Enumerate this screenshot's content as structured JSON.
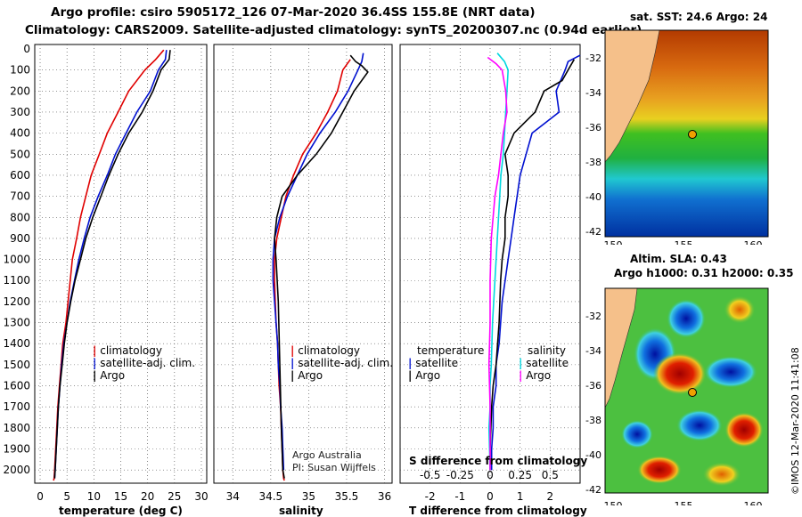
{
  "header": {
    "line1": "Argo profile: csiro 5905172_126 07-Mar-2020 36.4SS 155.8E (NRT data)",
    "line2": "Climatology: CARS2009. Satellite-adjusted climatology: synTS_20200307.nc (0.94d earlier)"
  },
  "colors": {
    "climatology": "#e00000",
    "satellite": "#0010d0",
    "argo": "#000000",
    "sat_salinity": "#00d8e0",
    "argo_salinity": "#ff00ff"
  },
  "chart_data": [
    {
      "type": "line",
      "id": "temperature",
      "xlabel": "temperature (deg C)",
      "xlim": [
        -1,
        31
      ],
      "ylim": [
        2050,
        0
      ],
      "xticks": [
        "0",
        "5",
        "10",
        "15",
        "20",
        "25",
        "30"
      ],
      "xtick_values": [
        0,
        5,
        10,
        15,
        20,
        25,
        30
      ],
      "ylabel_ticks": [
        "0",
        "100",
        "200",
        "300",
        "400",
        "500",
        "600",
        "700",
        "800",
        "900",
        "1000",
        "1100",
        "1200",
        "1300",
        "1400",
        "1500",
        "1600",
        "1700",
        "1800",
        "1900",
        "2000"
      ],
      "series": [
        {
          "name": "climatology",
          "color": "#e00000",
          "x": [
            23,
            21.5,
            19.5,
            16.5,
            14.5,
            12.5,
            11,
            9.5,
            8.5,
            7.5,
            6.8,
            6,
            5.6,
            5.2,
            4.8,
            4.2,
            3.9,
            3.6,
            3.3,
            3.1,
            2.9,
            2.7,
            2.6,
            2.5
          ],
          "y": [
            5,
            50,
            100,
            200,
            300,
            400,
            500,
            600,
            700,
            800,
            900,
            1000,
            1100,
            1200,
            1300,
            1400,
            1500,
            1600,
            1700,
            1800,
            1900,
            2000,
            2040,
            2050
          ]
        },
        {
          "name": "satellite-adj. clim.",
          "color": "#0010d0",
          "x": [
            23.5,
            23.3,
            22,
            20.5,
            18,
            16,
            14,
            12.5,
            10.8,
            9.3,
            8.2,
            7.2,
            6.4,
            5.6,
            5,
            4.4,
            4,
            3.7,
            3.4,
            3.2,
            3,
            2.8,
            2.7
          ],
          "y": [
            5,
            50,
            100,
            200,
            300,
            400,
            500,
            600,
            700,
            800,
            900,
            1000,
            1100,
            1200,
            1300,
            1400,
            1500,
            1600,
            1700,
            1800,
            1900,
            2000,
            2040
          ]
        },
        {
          "name": "Argo",
          "color": "#000000",
          "x": [
            24.2,
            24,
            22.5,
            21,
            19,
            16.5,
            14.5,
            12.8,
            11.3,
            9.8,
            8.5,
            7.5,
            6.5,
            5.7,
            5,
            4.5,
            4.1,
            3.7,
            3.4,
            3.2,
            3,
            2.8,
            2.7
          ],
          "y": [
            5,
            50,
            100,
            200,
            300,
            400,
            500,
            600,
            700,
            800,
            900,
            1000,
            1100,
            1200,
            1300,
            1400,
            1500,
            1600,
            1700,
            1800,
            1900,
            2000,
            2040
          ]
        }
      ],
      "legend": [
        "climatology",
        "satellite-adj. clim.",
        "Argo"
      ]
    },
    {
      "type": "line",
      "id": "salinity",
      "xlabel": "salinity",
      "xlim": [
        33.75,
        36.1
      ],
      "ylim": [
        2050,
        0
      ],
      "xticks": [
        "34",
        "34.5",
        "35",
        "35.5",
        "36"
      ],
      "xtick_values": [
        34,
        34.5,
        35,
        35.5,
        36
      ],
      "series": [
        {
          "name": "climatology",
          "color": "#e00000",
          "x": [
            35.55,
            35.45,
            35.38,
            35.25,
            35.1,
            34.92,
            34.8,
            34.7,
            34.64,
            34.58,
            34.55,
            34.55,
            34.56,
            34.57,
            34.59,
            34.6,
            34.61,
            34.63,
            34.64,
            34.65,
            34.66,
            34.67,
            34.68
          ],
          "y": [
            50,
            100,
            200,
            300,
            400,
            500,
            600,
            700,
            800,
            900,
            1000,
            1100,
            1200,
            1300,
            1400,
            1500,
            1600,
            1700,
            1800,
            1900,
            2000,
            2040,
            2050
          ]
        },
        {
          "name": "satellite-adj. clim.",
          "color": "#0010d0",
          "x": [
            35.72,
            35.7,
            35.65,
            35.52,
            35.35,
            35.15,
            34.98,
            34.85,
            34.72,
            34.62,
            34.55,
            34.53,
            34.53,
            34.55,
            34.57,
            34.59,
            34.6,
            34.62,
            34.63,
            34.65,
            34.66,
            34.67
          ],
          "y": [
            20,
            60,
            100,
            200,
            300,
            400,
            500,
            600,
            700,
            800,
            900,
            1000,
            1100,
            1200,
            1300,
            1400,
            1500,
            1600,
            1700,
            1800,
            1900,
            2000
          ]
        },
        {
          "name": "Argo",
          "color": "#000000",
          "x": [
            35.55,
            35.62,
            35.7,
            35.78,
            35.6,
            35.45,
            35.3,
            35.1,
            34.85,
            34.65,
            34.58,
            34.55,
            34.57,
            34.6,
            34.62,
            34.64,
            34.66,
            34.68
          ],
          "y": [
            30,
            60,
            80,
            110,
            200,
            300,
            400,
            500,
            600,
            700,
            800,
            900,
            1000,
            1200,
            1500,
            1800,
            2000,
            2040
          ]
        }
      ],
      "legend": [
        "climatology",
        "satellite-adj. clim.",
        "Argo"
      ],
      "credit1": "Argo Australia",
      "credit2": "PI: Susan Wijffels"
    },
    {
      "type": "line",
      "id": "differences",
      "xlabel": "T difference from climatology",
      "xlabel_top": "S difference from climatology",
      "xlim": [
        -3,
        3
      ],
      "ylim": [
        2050,
        0
      ],
      "xticks": [
        "-2",
        "-1",
        "0",
        "1",
        "2"
      ],
      "xtick_values": [
        -2,
        -1,
        0,
        1,
        2
      ],
      "xticks_top": [
        "-0.5",
        "-0.25",
        "0",
        "0.25",
        "0.5"
      ],
      "xtick_top_values": [
        -0.5,
        -0.25,
        0,
        0.25,
        0.5
      ],
      "series": [
        {
          "name": "temperature satellite",
          "color": "#0010d0",
          "x": [
            3,
            2.6,
            2.5,
            2.2,
            2.3,
            1.4,
            1.2,
            1.0,
            0.9,
            0.8,
            0.7,
            0.6,
            0.4,
            0.3,
            0.2,
            0.2,
            0.1,
            0.1,
            0.05,
            0.05
          ],
          "y": [
            30,
            60,
            100,
            200,
            300,
            400,
            500,
            600,
            700,
            800,
            900,
            1000,
            1200,
            1400,
            1500,
            1600,
            1700,
            1800,
            1900,
            2000
          ]
        },
        {
          "name": "temperature Argo",
          "color": "#000000",
          "x": [
            2.8,
            2.6,
            2.4,
            1.8,
            1.5,
            0.8,
            0.5,
            0.6,
            0.6,
            0.5,
            0.5,
            0.4,
            0.35,
            0.3,
            0.2,
            0.1,
            0.05,
            0,
            0
          ],
          "y": [
            50,
            100,
            150,
            200,
            300,
            400,
            500,
            600,
            700,
            800,
            900,
            1000,
            1100,
            1300,
            1500,
            1600,
            1700,
            1900,
            2000
          ]
        },
        {
          "name": "salinity satellite",
          "color": "#00d8e0",
          "x": [
            0.06,
            0.12,
            0.15,
            0.14,
            0.13,
            0.12,
            0.11,
            0.09,
            0.08,
            0.06,
            0.04,
            0.02,
            0.01,
            0,
            0,
            -0.01,
            0
          ],
          "y": [
            20,
            60,
            100,
            200,
            300,
            400,
            500,
            600,
            700,
            900,
            1100,
            1300,
            1500,
            1600,
            1700,
            1800,
            2000
          ]
        },
        {
          "name": "salinity Argo",
          "color": "#ff00ff",
          "x": [
            -0.02,
            0.05,
            0.1,
            0.13,
            0.14,
            0.11,
            0.09,
            0.07,
            0.04,
            0.01,
            0,
            0,
            -0.01,
            0,
            0
          ],
          "y": [
            40,
            70,
            100,
            200,
            300,
            400,
            500,
            600,
            700,
            900,
            1100,
            1300,
            1500,
            1700,
            2000
          ]
        }
      ],
      "legend_left_title": "temperature",
      "legend_right_title": "salinity",
      "legend": [
        "satellite",
        "Argo",
        "satellite",
        "Argo"
      ]
    }
  ],
  "map_sst": {
    "title": "sat. SST: 24.6 Argo: 24",
    "yticks": [
      "-32",
      "-34",
      "-36",
      "-38",
      "-40",
      "-42"
    ],
    "xticks": [
      "150",
      "155",
      "160"
    ]
  },
  "map_sla": {
    "title1": "Altim. SLA: 0.43",
    "title2": "Argo h1000: 0.31 h2000: 0.35",
    "yticks": [
      "-32",
      "-34",
      "-36",
      "-38",
      "-40",
      "-42"
    ],
    "xticks": [
      "150",
      "155",
      "160"
    ]
  },
  "footer": "©IMOS 12-Mar-2020 11:41:08"
}
